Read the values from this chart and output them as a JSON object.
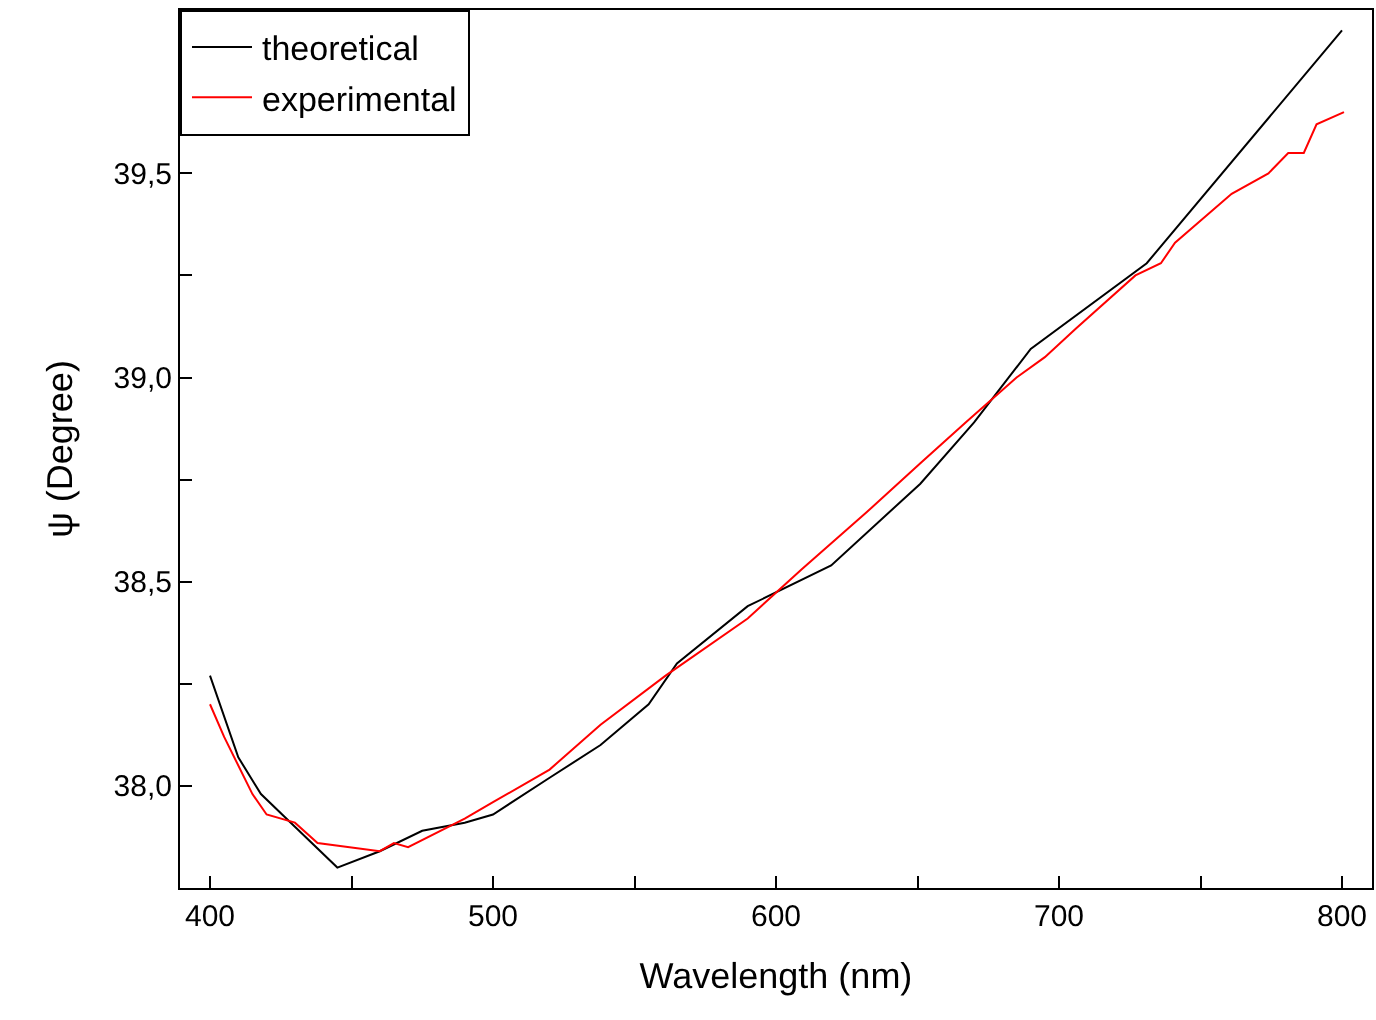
{
  "chart_data": {
    "type": "line",
    "xlabel": "Wavelength (nm)",
    "ylabel": "ψ (Degree)",
    "xlim": [
      389.4,
      810.6
    ],
    "ylim": [
      37.75,
      39.9
    ],
    "xticks": [
      400,
      {
        "value": 450,
        "label": null
      },
      500,
      {
        "value": 550,
        "label": null
      },
      600,
      {
        "value": 650,
        "label": null
      },
      700,
      {
        "value": 750,
        "label": null
      },
      800
    ],
    "yticks": [
      {
        "value": 37.75,
        "label": null
      },
      {
        "value": 38.0,
        "label": "38,0"
      },
      {
        "value": 38.25,
        "label": null
      },
      {
        "value": 38.5,
        "label": "38,5"
      },
      {
        "value": 38.75,
        "label": null
      },
      {
        "value": 39.0,
        "label": "39,0"
      },
      {
        "value": 39.25,
        "label": null
      },
      {
        "value": 39.5,
        "label": "39,5"
      },
      {
        "value": 39.75,
        "label": null
      }
    ],
    "legend": "top left",
    "series": [
      {
        "name": "theoretical",
        "color": "#000000",
        "x": [
          400,
          410,
          418,
          430,
          445,
          460,
          475,
          490,
          500,
          520,
          538,
          555,
          565,
          590,
          619.5,
          651,
          670,
          690,
          731,
          800
        ],
        "values": [
          38.27,
          38.07,
          37.98,
          37.9,
          37.8,
          37.84,
          37.89,
          37.91,
          37.93,
          38.02,
          38.1,
          38.2,
          38.3,
          38.44,
          38.54,
          38.74,
          38.89,
          39.07,
          39.28,
          39.85
        ]
      },
      {
        "name": "experimental",
        "color": "#ff0000",
        "x": [
          400,
          405,
          415,
          420,
          430,
          438,
          460,
          465,
          470,
          490,
          500,
          520,
          538,
          561,
          590,
          609,
          632,
          651,
          667,
          685,
          695,
          706,
          727,
          736,
          741,
          761,
          774,
          781,
          786.5,
          791,
          800.7
        ],
        "values": [
          38.2,
          38.12,
          37.98,
          37.93,
          37.91,
          37.86,
          37.84,
          37.86,
          37.85,
          37.92,
          37.96,
          38.04,
          38.15,
          38.27,
          38.41,
          38.53,
          38.67,
          38.79,
          38.89,
          39.0,
          39.05,
          39.12,
          39.25,
          39.28,
          39.33,
          39.45,
          39.5,
          39.55,
          39.55,
          39.62,
          39.65
        ]
      }
    ]
  }
}
